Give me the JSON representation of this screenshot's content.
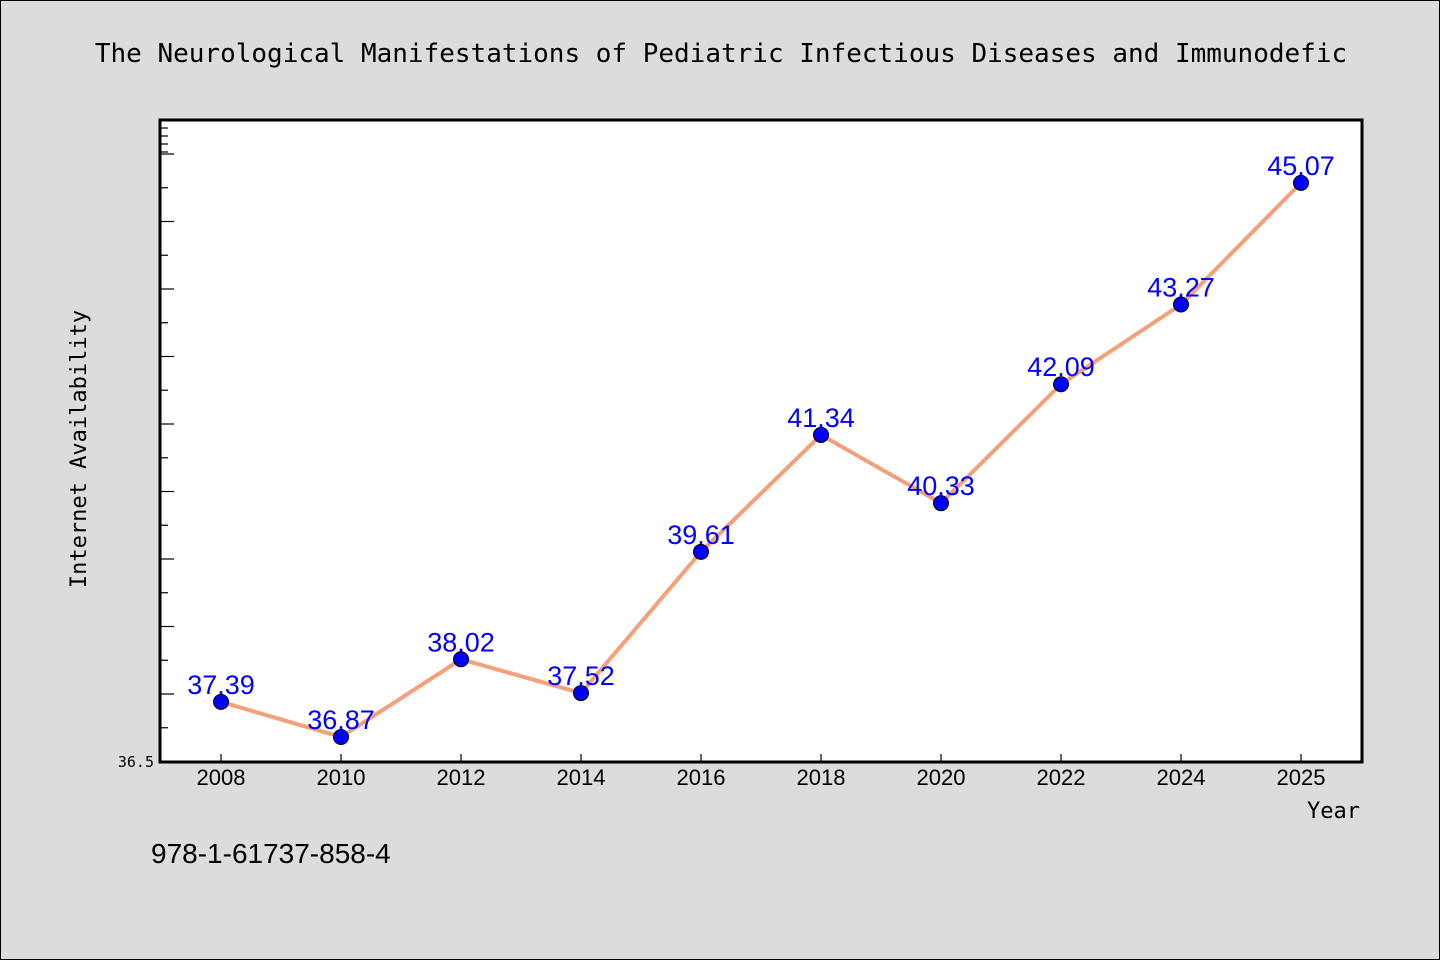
{
  "chart_data": {
    "type": "line",
    "title": "The Neurological Manifestations of Pediatric Infectious Diseases and Immunodefic",
    "xlabel": "Year",
    "ylabel": "Internet Availability",
    "x_tick_labels": [
      "2008",
      "2010",
      "2012",
      "2014",
      "2016",
      "2018",
      "2020",
      "2022",
      "2024",
      "2025"
    ],
    "y_tick_labels": [
      "36.5"
    ],
    "ylim": [
      36.5,
      46.0
    ],
    "series": [
      {
        "values": [
          37.39,
          36.87,
          38.02,
          37.52,
          39.61,
          41.34,
          40.33,
          42.09,
          43.27,
          45.07
        ],
        "value_labels": [
          "37.39",
          "36.87",
          "38.02",
          "37.52",
          "39.61",
          "41.34",
          "40.33",
          "42.09",
          "43.27",
          "45.07"
        ]
      }
    ],
    "grid": false,
    "legend": "none"
  },
  "footer": {
    "isbn": "978-1-61737-858-4"
  },
  "colors": {
    "background": "#dcdcdc",
    "plot_background": "#ffffff",
    "line": "#f4a07a",
    "marker": "#0000ff",
    "value_label": "#0000ff",
    "text": "#000000"
  }
}
